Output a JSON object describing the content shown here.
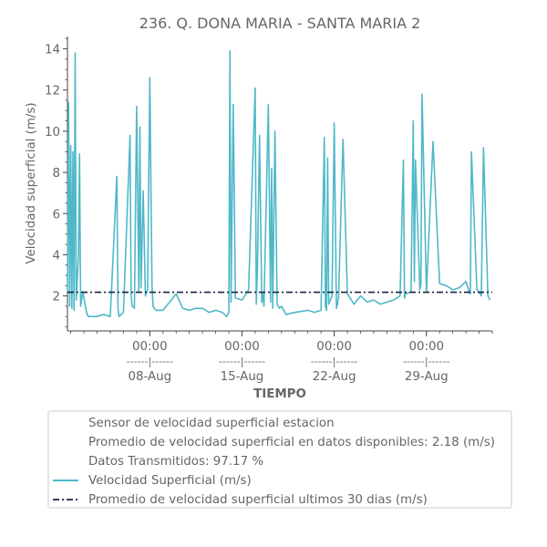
{
  "chart_data": {
    "type": "line",
    "title": "236. Q. DONA MARIA - SANTA MARIA 2",
    "xlabel": "TIEMPO",
    "ylabel": "Velocidad superficial (m/s)",
    "ylim": [
      0.3,
      14.6
    ],
    "xlim": [
      "2019-08-01T18:00",
      "2019-09-03T00:00"
    ],
    "y_ticks": [
      2,
      4,
      6,
      8,
      10,
      12,
      14
    ],
    "y_tick_labels": [
      "2",
      "4",
      "6",
      "8",
      "10",
      "12",
      "14"
    ],
    "x_ticks": [
      {
        "x": "2019-08-08T00:00",
        "time": "00:00",
        "sep": "------|------",
        "date": "08-Aug"
      },
      {
        "x": "2019-08-15T00:00",
        "time": "00:00",
        "sep": "------|------",
        "date": "15-Aug"
      },
      {
        "x": "2019-08-22T00:00",
        "time": "00:00",
        "sep": "------|------",
        "date": "22-Aug"
      },
      {
        "x": "2019-08-29T00:00",
        "time": "00:00",
        "sep": "------|------",
        "date": "29-Aug"
      }
    ],
    "grid": false,
    "legend_position": "bottom",
    "colors": {
      "series": "#4fb8c8",
      "average": "#1a2440",
      "text": "#666666",
      "axis": "#444444"
    },
    "series": [
      {
        "name": "Velocidad Superficial (m/s)",
        "style": "solid",
        "x": [
          "2019-08-01T18:00",
          "2019-08-01T20:00",
          "2019-08-01T22:00",
          "2019-08-02T00:00",
          "2019-08-02T02:00",
          "2019-08-02T04:00",
          "2019-08-02T06:00",
          "2019-08-02T08:00",
          "2019-08-02T10:00",
          "2019-08-02T14:00",
          "2019-08-02T16:00",
          "2019-08-02T18:00",
          "2019-08-02T22:00",
          "2019-08-03T04:00",
          "2019-08-03T06:00",
          "2019-08-03T08:00",
          "2019-08-03T12:00",
          "2019-08-04T00:00",
          "2019-08-04T12:00",
          "2019-08-05T00:00",
          "2019-08-05T12:00",
          "2019-08-05T14:00",
          "2019-08-05T16:00",
          "2019-08-06T00:00",
          "2019-08-06T12:00",
          "2019-08-06T14:00",
          "2019-08-06T16:00",
          "2019-08-06T20:00",
          "2019-08-07T00:00",
          "2019-08-07T04:00",
          "2019-08-07T06:00",
          "2019-08-07T08:00",
          "2019-08-07T12:00",
          "2019-08-07T16:00",
          "2019-08-07T20:00",
          "2019-08-08T00:00",
          "2019-08-08T04:00",
          "2019-08-08T06:00",
          "2019-08-08T08:00",
          "2019-08-08T12:00",
          "2019-08-09T00:00",
          "2019-08-10T00:00",
          "2019-08-10T12:00",
          "2019-08-11T00:00",
          "2019-08-11T12:00",
          "2019-08-12T00:00",
          "2019-08-12T12:00",
          "2019-08-13T00:00",
          "2019-08-13T12:00",
          "2019-08-13T20:00",
          "2019-08-14T00:00",
          "2019-08-14T02:00",
          "2019-08-14T04:00",
          "2019-08-14T08:00",
          "2019-08-14T12:00",
          "2019-08-15T00:00",
          "2019-08-15T12:00",
          "2019-08-16T00:00",
          "2019-08-16T02:00",
          "2019-08-16T04:00",
          "2019-08-16T08:00",
          "2019-08-16T12:00",
          "2019-08-16T14:00",
          "2019-08-16T16:00",
          "2019-08-17T00:00",
          "2019-08-17T04:00",
          "2019-08-17T06:00",
          "2019-08-17T08:00",
          "2019-08-17T12:00",
          "2019-08-17T16:00",
          "2019-08-17T20:00",
          "2019-08-18T00:00",
          "2019-08-18T04:00",
          "2019-08-18T08:00",
          "2019-08-19T00:00",
          "2019-08-20T00:00",
          "2019-08-20T12:00",
          "2019-08-21T00:00",
          "2019-08-21T06:00",
          "2019-08-21T08:00",
          "2019-08-21T10:00",
          "2019-08-21T12:00",
          "2019-08-21T14:00",
          "2019-08-21T20:00",
          "2019-08-22T00:00",
          "2019-08-22T04:00",
          "2019-08-22T06:00",
          "2019-08-22T08:00",
          "2019-08-22T16:00",
          "2019-08-23T00:00",
          "2019-08-23T12:00",
          "2019-08-24T00:00",
          "2019-08-24T12:00",
          "2019-08-25T00:00",
          "2019-08-25T12:00",
          "2019-08-26T00:00",
          "2019-08-26T12:00",
          "2019-08-27T00:00",
          "2019-08-27T06:00",
          "2019-08-27T08:00",
          "2019-08-27T10:00",
          "2019-08-27T20:00",
          "2019-08-28T00:00",
          "2019-08-28T02:00",
          "2019-08-28T04:00",
          "2019-08-28T12:00",
          "2019-08-28T14:00",
          "2019-08-28T16:00",
          "2019-08-29T00:00",
          "2019-08-29T12:00",
          "2019-08-30T00:00",
          "2019-08-30T12:00",
          "2019-08-31T00:00",
          "2019-08-31T12:00",
          "2019-09-01T00:00",
          "2019-09-01T06:00",
          "2019-09-01T08:00",
          "2019-09-01T10:00",
          "2019-09-01T20:00",
          "2019-09-02T00:00",
          "2019-09-02T04:00",
          "2019-09-02T08:00",
          "2019-09-02T16:00",
          "2019-09-02T20:00"
        ],
        "values": [
          2.2,
          11.4,
          1.5,
          9.3,
          1.4,
          9.0,
          1.3,
          13.8,
          1.8,
          3.9,
          8.9,
          1.5,
          2.2,
          1.3,
          1.1,
          1.0,
          1.0,
          1.0,
          1.1,
          1.0,
          7.8,
          1.4,
          1.0,
          1.2,
          9.8,
          2.0,
          1.5,
          1.4,
          11.2,
          2.2,
          10.2,
          2.4,
          7.1,
          2.0,
          2.3,
          12.6,
          2.5,
          1.5,
          1.4,
          1.3,
          1.3,
          2.1,
          1.4,
          1.3,
          1.4,
          1.4,
          1.2,
          1.3,
          1.2,
          1.0,
          1.2,
          13.9,
          1.7,
          11.3,
          1.9,
          1.8,
          2.3,
          12.1,
          1.6,
          3.2,
          9.8,
          1.7,
          2.1,
          1.5,
          11.3,
          1.7,
          8.2,
          1.4,
          10.0,
          1.6,
          1.4,
          1.5,
          1.3,
          1.1,
          1.2,
          1.3,
          1.2,
          1.3,
          9.7,
          1.5,
          1.3,
          8.7,
          1.6,
          2.0,
          10.4,
          1.4,
          1.6,
          2.0,
          9.6,
          2.1,
          1.6,
          2.0,
          1.7,
          1.8,
          1.6,
          1.7,
          1.8,
          2.0,
          8.6,
          1.9,
          2.1,
          2.2,
          10.5,
          2.7,
          8.6,
          2.3,
          2.6,
          11.8,
          2.2,
          9.5,
          2.6,
          2.5,
          2.3,
          2.4,
          2.7,
          2.2,
          2.1,
          9.0,
          2.3,
          2.2,
          2.0,
          9.2,
          2.0,
          1.8
        ]
      },
      {
        "name": "Promedio de velocidad superficial ultimos 30 dias (m/s)",
        "style": "dashdot",
        "x": [
          "2019-08-01T18:00",
          "2019-09-03T00:00"
        ],
        "values": [
          2.18,
          2.18
        ]
      }
    ],
    "legend": {
      "entries": [
        {
          "label": "Sensor de velocidad superficial estacion",
          "marker": "none"
        },
        {
          "label": "Promedio de velocidad superficial en datos disponibles: 2.18 (m/s)",
          "marker": "none"
        },
        {
          "label": "Datos Transmitidos: 97.17 %",
          "marker": "none"
        },
        {
          "label": "Velocidad Superficial (m/s)",
          "marker": "solid"
        },
        {
          "label": "Promedio de velocidad superficial ultimos 30 dias (m/s)",
          "marker": "dashdot"
        }
      ]
    }
  }
}
